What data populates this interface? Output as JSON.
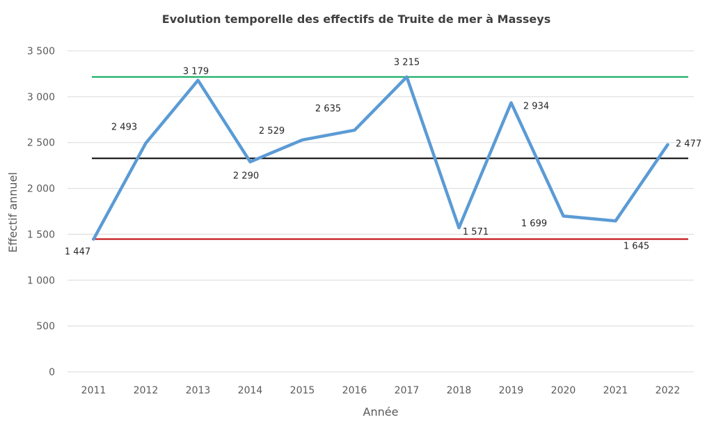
{
  "chart_data": {
    "type": "line",
    "title": "Evolution temporelle des effectifs de Truite de mer à Masseys",
    "xlabel": "Année",
    "ylabel": "Effectif annuel",
    "categories": [
      "2011",
      "2012",
      "2013",
      "2014",
      "2015",
      "2016",
      "2017",
      "2018",
      "2019",
      "2020",
      "2021",
      "2022"
    ],
    "series": [
      {
        "values": [
          1447,
          2493,
          3179,
          2290,
          2529,
          2635,
          3215,
          1571,
          2934,
          1699,
          1645,
          2477
        ],
        "labels": [
          "1 447",
          "2 493",
          "3 179",
          "2 290",
          "2 529",
          "2 635",
          "3 215",
          "1 571",
          "2 934",
          "1 699",
          "1 645",
          "2 477"
        ],
        "color": "#5b9bd5"
      }
    ],
    "reference_lines": [
      {
        "value": 3215,
        "color": "#00a651"
      },
      {
        "value": 2328,
        "color": "#000000"
      },
      {
        "value": 1447,
        "color": "#c00000"
      }
    ],
    "ylim": [
      0,
      3500
    ],
    "yticks": [
      0,
      500,
      1000,
      1500,
      2000,
      2500,
      3000,
      3500
    ],
    "ytick_labels": [
      "0",
      "500",
      "1 000",
      "1 500",
      "2 000",
      "2 500",
      "3 000",
      "3 500"
    ],
    "grid": true,
    "legend": "none"
  }
}
